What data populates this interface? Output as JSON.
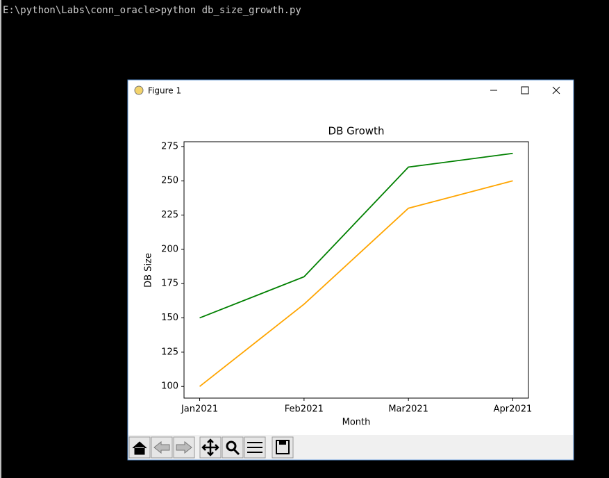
{
  "terminal": {
    "command": "E:\\python\\Labs\\conn_oracle>python db_size_growth.py"
  },
  "window": {
    "title": "Figure 1"
  },
  "chart_data": {
    "type": "line",
    "title": "DB Growth",
    "x_label": "Month",
    "y_label": "DB Size",
    "categories": [
      "Jan2021",
      "Feb2021",
      "Mar2021",
      "Apr2021"
    ],
    "series": [
      {
        "color": "#008000",
        "values": [
          150,
          180,
          260,
          270
        ]
      },
      {
        "color": "#ffa500",
        "values": [
          100,
          160,
          230,
          250
        ]
      }
    ],
    "xlim": [
      -0.15,
      3.15
    ],
    "ylim": [
      91.5,
      278.5
    ],
    "yticks": [
      100,
      125,
      150,
      175,
      200,
      225,
      250,
      275
    ],
    "grid": false
  }
}
